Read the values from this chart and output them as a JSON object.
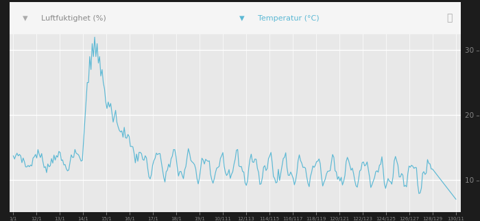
{
  "legend_humidity": "Luftfuktighet (%)",
  "legend_temp": "Temperatur (°C)",
  "outer_bg": "#1a1a1a",
  "inner_bg": "#f2f2f2",
  "plot_bg": "#e8e8e8",
  "line_color": "#5bb8d4",
  "grid_color": "#ffffff",
  "ytick_color": "#888888",
  "xtick_color": "#888888",
  "ylim": [
    5,
    35
  ],
  "yticks": [
    10,
    20,
    30
  ],
  "x_labels": [
    "1/1",
    "12/1",
    "13/1",
    "14/1",
    "15/1",
    "16/1",
    "17/1",
    "18/1",
    "19/1",
    "10/111",
    "12/113",
    "114/115",
    "116/117",
    "118/119",
    "120/121",
    "122/123",
    "124/125",
    "126/127",
    "128/129",
    "130/11"
  ]
}
